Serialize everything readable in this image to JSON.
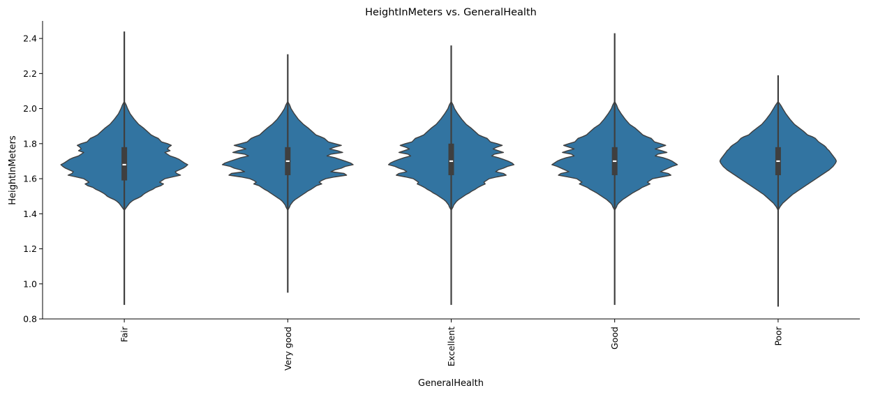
{
  "chart_data": {
    "type": "violin",
    "title": "HeightInMeters vs. GeneralHealth",
    "xlabel": "GeneralHealth",
    "ylabel": "HeightInMeters",
    "ylim": [
      0.8,
      2.5
    ],
    "yticks": [
      "0.8",
      "1.0",
      "1.2",
      "1.4",
      "1.6",
      "1.8",
      "2.0",
      "2.2",
      "2.4"
    ],
    "categories": [
      "Fair",
      "Very good",
      "Excellent",
      "Good",
      "Poor"
    ],
    "color": "#3274a1",
    "edge_color": "#3f3f3f",
    "grid": false,
    "series": [
      {
        "category": "Fair",
        "min": 0.88,
        "q1": 1.59,
        "median": 1.68,
        "q3": 1.78,
        "max": 2.44
      },
      {
        "category": "Very good",
        "min": 0.95,
        "q1": 1.62,
        "median": 1.7,
        "q3": 1.78,
        "max": 2.31
      },
      {
        "category": "Excellent",
        "min": 0.88,
        "q1": 1.62,
        "median": 1.7,
        "q3": 1.8,
        "max": 2.36
      },
      {
        "category": "Good",
        "min": 0.88,
        "q1": 1.62,
        "median": 1.7,
        "q3": 1.78,
        "max": 2.43
      },
      {
        "category": "Poor",
        "min": 0.87,
        "q1": 1.62,
        "median": 1.7,
        "q3": 1.78,
        "max": 2.19
      }
    ],
    "density_profile": {
      "heights": [
        2.02,
        2.0,
        1.97,
        1.94,
        1.91,
        1.89,
        1.87,
        1.85,
        1.84,
        1.83,
        1.81,
        1.8,
        1.79,
        1.78,
        1.77,
        1.76,
        1.75,
        1.74,
        1.73,
        1.72,
        1.71,
        1.7,
        1.69,
        1.68,
        1.67,
        1.66,
        1.65,
        1.64,
        1.63,
        1.62,
        1.61,
        1.6,
        1.59,
        1.58,
        1.57,
        1.56,
        1.55,
        1.54,
        1.53,
        1.52,
        1.51,
        1.5,
        1.49,
        1.48,
        1.47,
        1.46,
        1.45,
        1.44
      ],
      "Fair": [
        0.03,
        0.05,
        0.09,
        0.15,
        0.22,
        0.29,
        0.35,
        0.41,
        0.46,
        0.52,
        0.57,
        0.66,
        0.72,
        0.68,
        0.66,
        0.7,
        0.62,
        0.66,
        0.7,
        0.78,
        0.84,
        0.88,
        0.92,
        0.97,
        0.94,
        0.9,
        0.84,
        0.78,
        0.8,
        0.86,
        0.74,
        0.62,
        0.58,
        0.54,
        0.6,
        0.56,
        0.48,
        0.44,
        0.38,
        0.33,
        0.29,
        0.26,
        0.21,
        0.15,
        0.11,
        0.08,
        0.06,
        0.04
      ],
      "Very good": [
        0.03,
        0.05,
        0.1,
        0.16,
        0.24,
        0.31,
        0.37,
        0.43,
        0.5,
        0.56,
        0.62,
        0.72,
        0.82,
        0.72,
        0.64,
        0.76,
        0.84,
        0.66,
        0.6,
        0.72,
        0.8,
        0.88,
        0.96,
        1.0,
        0.88,
        0.82,
        0.72,
        0.66,
        0.86,
        0.9,
        0.72,
        0.58,
        0.52,
        0.48,
        0.52,
        0.44,
        0.4,
        0.36,
        0.31,
        0.27,
        0.23,
        0.19,
        0.15,
        0.11,
        0.08,
        0.06,
        0.04,
        0.03
      ],
      "Excellent": [
        0.03,
        0.05,
        0.1,
        0.16,
        0.23,
        0.3,
        0.36,
        0.42,
        0.48,
        0.55,
        0.6,
        0.7,
        0.78,
        0.7,
        0.64,
        0.72,
        0.8,
        0.66,
        0.62,
        0.72,
        0.8,
        0.87,
        0.93,
        0.96,
        0.86,
        0.8,
        0.72,
        0.68,
        0.8,
        0.84,
        0.7,
        0.58,
        0.54,
        0.5,
        0.52,
        0.46,
        0.41,
        0.37,
        0.32,
        0.28,
        0.23,
        0.19,
        0.15,
        0.11,
        0.08,
        0.06,
        0.04,
        0.03
      ],
      "Good": [
        0.03,
        0.05,
        0.1,
        0.16,
        0.23,
        0.31,
        0.37,
        0.43,
        0.49,
        0.56,
        0.61,
        0.7,
        0.78,
        0.7,
        0.62,
        0.72,
        0.8,
        0.66,
        0.62,
        0.74,
        0.82,
        0.88,
        0.92,
        0.96,
        0.88,
        0.82,
        0.76,
        0.7,
        0.82,
        0.86,
        0.72,
        0.58,
        0.54,
        0.5,
        0.54,
        0.48,
        0.42,
        0.38,
        0.33,
        0.28,
        0.24,
        0.2,
        0.16,
        0.12,
        0.09,
        0.06,
        0.04,
        0.03
      ],
      "Poor": [
        0.04,
        0.07,
        0.12,
        0.18,
        0.25,
        0.32,
        0.39,
        0.45,
        0.52,
        0.57,
        0.62,
        0.66,
        0.7,
        0.73,
        0.75,
        0.78,
        0.8,
        0.82,
        0.84,
        0.86,
        0.88,
        0.89,
        0.88,
        0.86,
        0.84,
        0.81,
        0.78,
        0.74,
        0.7,
        0.66,
        0.62,
        0.58,
        0.54,
        0.5,
        0.46,
        0.42,
        0.38,
        0.34,
        0.3,
        0.26,
        0.22,
        0.19,
        0.16,
        0.13,
        0.1,
        0.07,
        0.05,
        0.03
      ]
    }
  }
}
